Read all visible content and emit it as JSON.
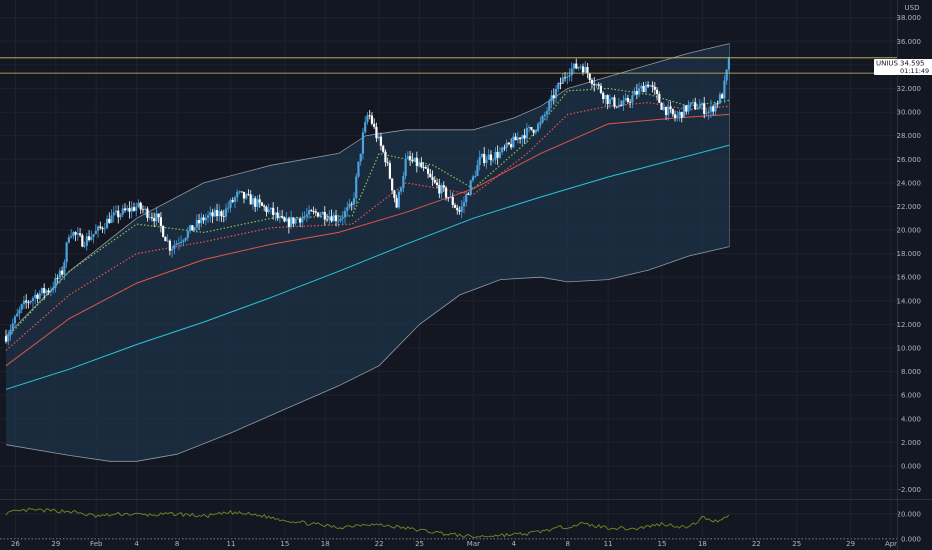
{
  "colors": {
    "background": "#131722",
    "grid": "#1e2230",
    "axis_text": "#b2b5be",
    "candle_up": "#4aa3df",
    "candle_down": "#ffffff",
    "band_line": "#c7cdd6",
    "band_fill": "#1e3348",
    "ma_fast": "#8bc34a",
    "ma_mid_dotted": "#ef5350",
    "ma_slow": "#e05548",
    "ma_long": "#26c6da",
    "osc_line": "#6b8e23",
    "price_tag_bg": "#ffffff",
    "horizontal_level": "#d4c26a"
  },
  "chart_data": [
    {
      "type": "candlestick",
      "currency_label": "USD",
      "symbol": "UNIUSD",
      "last_price_label": "34.595",
      "countdown_label": "01:11:49",
      "last_price": 34.595,
      "horizontal_levels": [
        34.6,
        33.3
      ],
      "ylim": [
        -2.8,
        39.5
      ],
      "y_ticks": [
        -2,
        0,
        2,
        4,
        6,
        8,
        10,
        12,
        14,
        16,
        18,
        20,
        22,
        24,
        26,
        28,
        30,
        32,
        34,
        36,
        38
      ],
      "y_tick_labels": [
        "-2.000",
        "0.000",
        "2.000",
        "4.000",
        "6.000",
        "8.000",
        "10.000",
        "12.000",
        "14.000",
        "16.000",
        "18.000",
        "20.000",
        "22.000",
        "24.000",
        "26.000",
        "28.000",
        "30.000",
        "32.000",
        "34.000",
        "36.000",
        "38.000"
      ],
      "x_ticks": [
        {
          "day": 26,
          "label": "26"
        },
        {
          "day": 29,
          "label": "29"
        },
        {
          "day": 32,
          "label": "Feb"
        },
        {
          "day": 35,
          "label": "4"
        },
        {
          "day": 38,
          "label": "8"
        },
        {
          "day": 42,
          "label": "11"
        },
        {
          "day": 46,
          "label": "15"
        },
        {
          "day": 49,
          "label": "18"
        },
        {
          "day": 53,
          "label": "22"
        },
        {
          "day": 56,
          "label": "25"
        },
        {
          "day": 60,
          "label": "Mar"
        },
        {
          "day": 63,
          "label": "4"
        },
        {
          "day": 67,
          "label": "8"
        },
        {
          "day": 70,
          "label": "11"
        },
        {
          "day": 74,
          "label": "15"
        },
        {
          "day": 77,
          "label": "18"
        },
        {
          "day": 81,
          "label": "22"
        },
        {
          "day": 84,
          "label": "25"
        },
        {
          "day": 88,
          "label": "29"
        },
        {
          "day": 91,
          "label": "Apr"
        }
      ],
      "price_keypoints": [
        [
          25.3,
          11.0
        ],
        [
          26.5,
          13.5
        ],
        [
          27.5,
          14.5
        ],
        [
          28.6,
          15.0
        ],
        [
          29.5,
          16.5
        ],
        [
          30.0,
          20.0
        ],
        [
          31.0,
          19.0
        ],
        [
          32.2,
          20.0
        ],
        [
          33.0,
          21.0
        ],
        [
          34.0,
          21.5
        ],
        [
          35.0,
          22.0
        ],
        [
          36.5,
          21.0
        ],
        [
          37.5,
          18.5
        ],
        [
          38.5,
          19.5
        ],
        [
          40.0,
          21.0
        ],
        [
          41.5,
          21.5
        ],
        [
          42.5,
          23.0
        ],
        [
          43.5,
          22.5
        ],
        [
          45.0,
          21.5
        ],
        [
          46.0,
          20.5
        ],
        [
          47.0,
          21.0
        ],
        [
          48.5,
          21.5
        ],
        [
          50.0,
          21.0
        ],
        [
          51.0,
          22.0
        ],
        [
          51.8,
          28.0
        ],
        [
          52.2,
          30.0
        ],
        [
          52.8,
          28.0
        ],
        [
          53.5,
          26.0
        ],
        [
          54.3,
          22.0
        ],
        [
          55.0,
          26.0
        ],
        [
          56.0,
          25.5
        ],
        [
          57.0,
          24.0
        ],
        [
          58.0,
          23.0
        ],
        [
          59.0,
          21.5
        ],
        [
          59.5,
          23.0
        ],
        [
          60.5,
          26.0
        ],
        [
          62.0,
          26.5
        ],
        [
          63.5,
          28.0
        ],
        [
          65.0,
          29.0
        ],
        [
          66.0,
          31.5
        ],
        [
          67.0,
          33.5
        ],
        [
          68.0,
          34.0
        ],
        [
          69.0,
          32.5
        ],
        [
          70.0,
          31.0
        ],
        [
          71.0,
          30.5
        ],
        [
          72.0,
          31.5
        ],
        [
          73.0,
          32.5
        ],
        [
          74.0,
          30.5
        ],
        [
          75.0,
          29.5
        ],
        [
          76.0,
          30.5
        ],
        [
          76.8,
          30.5
        ],
        [
          77.5,
          30.0
        ],
        [
          78.5,
          31.5
        ],
        [
          79.0,
          34.5
        ]
      ],
      "moving_averages": [
        {
          "style": "dotted",
          "points": [
            [
              25.3,
              10.8
            ],
            [
              30,
              16.5
            ],
            [
              35,
              20.5
            ],
            [
              40,
              19.8
            ],
            [
              45,
              21.0
            ],
            [
              51,
              21.2
            ],
            [
              53,
              26.5
            ],
            [
              57,
              25.5
            ],
            [
              60,
              23.5
            ],
            [
              64,
              27.5
            ],
            [
              67,
              31.8
            ],
            [
              70,
              32.0
            ],
            [
              73,
              31.5
            ],
            [
              76,
              30.5
            ],
            [
              79,
              31.0
            ]
          ]
        },
        {
          "style": "dotted",
          "points": [
            [
              25.3,
              9.8
            ],
            [
              30,
              14.5
            ],
            [
              35,
              18.0
            ],
            [
              40,
              19.0
            ],
            [
              45,
              20.2
            ],
            [
              51,
              20.5
            ],
            [
              55,
              24.0
            ],
            [
              60,
              23.0
            ],
            [
              64,
              26.5
            ],
            [
              67,
              29.8
            ],
            [
              70,
              30.5
            ],
            [
              73,
              30.8
            ],
            [
              76,
              30.2
            ],
            [
              79,
              30.5
            ]
          ]
        },
        {
          "style": "solid",
          "points": [
            [
              25.3,
              8.5
            ],
            [
              30,
              12.5
            ],
            [
              35,
              15.5
            ],
            [
              40,
              17.5
            ],
            [
              45,
              18.8
            ],
            [
              50,
              19.8
            ],
            [
              55,
              21.5
            ],
            [
              60,
              23.5
            ],
            [
              65,
              26.5
            ],
            [
              70,
              29.0
            ],
            [
              75,
              29.5
            ],
            [
              79,
              29.8
            ]
          ]
        },
        {
          "style": "solid",
          "points": [
            [
              25.3,
              6.5
            ],
            [
              30,
              8.2
            ],
            [
              35,
              10.3
            ],
            [
              40,
              12.2
            ],
            [
              45,
              14.3
            ],
            [
              50,
              16.5
            ],
            [
              55,
              18.8
            ],
            [
              60,
              21.0
            ],
            [
              65,
              22.8
            ],
            [
              70,
              24.5
            ],
            [
              75,
              26.0
            ],
            [
              79,
              27.2
            ]
          ]
        }
      ],
      "band_upper": [
        [
          25.3,
          11.0
        ],
        [
          30,
          16.5
        ],
        [
          35,
          21.0
        ],
        [
          40,
          24.0
        ],
        [
          45,
          25.5
        ],
        [
          50,
          26.5
        ],
        [
          52,
          28.0
        ],
        [
          55,
          28.5
        ],
        [
          60,
          28.5
        ],
        [
          63,
          29.5
        ],
        [
          65,
          30.5
        ],
        [
          67,
          32.0
        ],
        [
          70,
          33.0
        ],
        [
          73,
          34.0
        ],
        [
          76,
          35.0
        ],
        [
          79,
          35.8
        ]
      ],
      "band_lower": [
        [
          25.3,
          1.8
        ],
        [
          30,
          0.9
        ],
        [
          33,
          0.4
        ],
        [
          35,
          0.4
        ],
        [
          38,
          1.0
        ],
        [
          42,
          2.8
        ],
        [
          46,
          4.8
        ],
        [
          50,
          6.8
        ],
        [
          53,
          8.5
        ],
        [
          56,
          12.0
        ],
        [
          59,
          14.5
        ],
        [
          62,
          15.8
        ],
        [
          65,
          16.0
        ],
        [
          67,
          15.6
        ],
        [
          70,
          15.8
        ],
        [
          73,
          16.6
        ],
        [
          76,
          17.8
        ],
        [
          79,
          18.6
        ]
      ],
      "oscillator": {
        "ylim": [
          -2.5,
          31
        ],
        "y_ticks": [
          0,
          20
        ],
        "y_tick_labels": [
          "0.000",
          "20.000"
        ],
        "reference_level": 0,
        "keypoints": [
          [
            25.3,
            20.5
          ],
          [
            27,
            23
          ],
          [
            30,
            22
          ],
          [
            32,
            18
          ],
          [
            34,
            20
          ],
          [
            36,
            19
          ],
          [
            38,
            20
          ],
          [
            40,
            18
          ],
          [
            42,
            21
          ],
          [
            44,
            19
          ],
          [
            46,
            15
          ],
          [
            48,
            12
          ],
          [
            50,
            9
          ],
          [
            52,
            12
          ],
          [
            54,
            10
          ],
          [
            56,
            7
          ],
          [
            58,
            4
          ],
          [
            60,
            1.5
          ],
          [
            62,
            3
          ],
          [
            64,
            4
          ],
          [
            66,
            8
          ],
          [
            68,
            12
          ],
          [
            70,
            9
          ],
          [
            72,
            8
          ],
          [
            74,
            12
          ],
          [
            76,
            9
          ],
          [
            77,
            17
          ],
          [
            78,
            14
          ],
          [
            79,
            19
          ]
        ]
      }
    }
  ]
}
